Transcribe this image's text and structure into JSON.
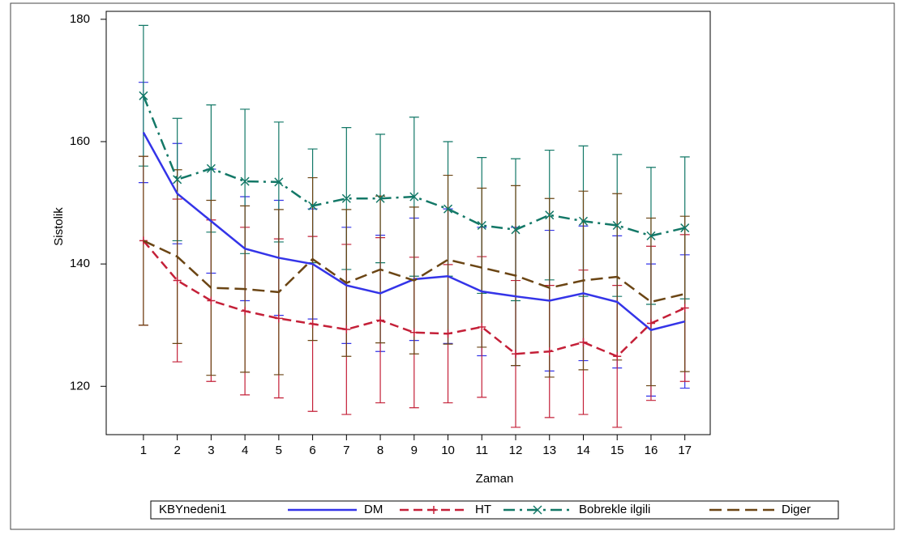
{
  "chart_data": {
    "type": "line",
    "x_label": "Zaman",
    "y_label": "Sistolik",
    "legend_title": "KBYnedeni1",
    "x": [
      1,
      2,
      3,
      4,
      5,
      6,
      7,
      8,
      9,
      10,
      11,
      12,
      13,
      14,
      15,
      16,
      17
    ],
    "xlim": [
      -0.1,
      17.75
    ],
    "xticks": [
      1,
      2,
      3,
      4,
      5,
      6,
      7,
      8,
      9,
      10,
      11,
      12,
      13,
      14,
      15,
      16,
      17
    ],
    "ylim": [
      112.1,
      181.3
    ],
    "yticks": [
      120,
      140,
      160,
      180
    ],
    "series": [
      {
        "name": "DM",
        "color": "#3434e8",
        "dash": "solid",
        "marker": "none",
        "values": [
          161.5,
          151.5,
          147,
          142.5,
          141,
          140,
          136.5,
          135.2,
          137.5,
          138,
          135.5,
          134.7,
          134,
          135.2,
          133.8,
          129.2,
          130.6
        ],
        "errors": [
          8.2,
          8.2,
          8.5,
          8.5,
          9.4,
          9,
          9.5,
          9.5,
          10,
          11,
          10.5,
          11.3,
          11.5,
          11,
          10.8,
          10.8,
          10.9
        ]
      },
      {
        "name": "HT",
        "color": "#c42038",
        "dash": "dashed",
        "marker": "plus",
        "values": [
          143.8,
          137.3,
          134,
          132.3,
          131.1,
          130.2,
          129.3,
          130.8,
          128.8,
          128.6,
          129.7,
          125.3,
          125.7,
          127.2,
          124.9,
          130.3,
          132.8
        ],
        "errors": [
          13.8,
          13.3,
          13.2,
          13.7,
          13,
          14.3,
          13.9,
          13.5,
          12.3,
          11.3,
          11.5,
          12,
          10.8,
          11.8,
          11.6,
          12.6,
          12
        ]
      },
      {
        "name": "Bobrekle ilgili",
        "color": "#137867",
        "dash": "dashdot",
        "marker": "x",
        "values": [
          167.5,
          153.8,
          155.6,
          153.5,
          153.4,
          149.5,
          150.7,
          150.7,
          151,
          149,
          146.3,
          145.6,
          148,
          147,
          146.3,
          144.6,
          145.9
        ],
        "errors": [
          11.5,
          10,
          10.4,
          11.8,
          9.8,
          9.3,
          11.6,
          10.5,
          13,
          11,
          11.1,
          11.6,
          10.6,
          12.3,
          11.6,
          11.2,
          11.6
        ]
      },
      {
        "name": "Diger",
        "color": "#6b4514",
        "dash": "longdash",
        "marker": "none",
        "values": [
          143.8,
          141.2,
          136.1,
          135.9,
          135.4,
          140.8,
          136.9,
          139.1,
          137.3,
          140.7,
          139.4,
          138.1,
          136.1,
          137.3,
          137.9,
          133.8,
          135.1
        ],
        "errors": [
          13.8,
          14.2,
          14.3,
          13.6,
          13.5,
          13.3,
          12,
          12,
          12,
          13.8,
          13,
          14.7,
          14.6,
          14.6,
          13.6,
          13.7,
          12.7
        ]
      }
    ]
  }
}
